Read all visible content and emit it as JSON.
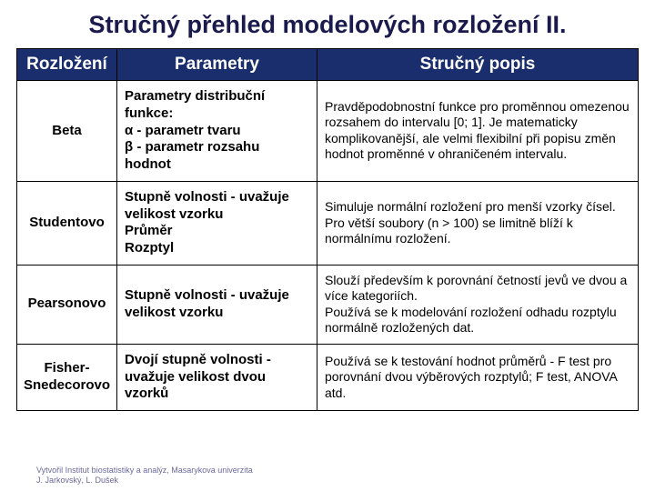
{
  "title": "Stručný přehled modelových rozložení II.",
  "headers": {
    "c1": "Rozložení",
    "c2": "Parametry",
    "c3": "Stručný popis"
  },
  "rows": [
    {
      "name": "Beta",
      "params": "Parametry distribuční funkce:\nα - parametr tvaru\nβ - parametr rozsahu hodnot",
      "desc": "Pravděpodobnostní funkce pro proměnnou omezenou rozsahem do intervalu [0; 1]. Je matematicky komplikovanější, ale velmi flexibilní při popisu změn hodnot proměnné v ohraničeném intervalu."
    },
    {
      "name": "Studentovo",
      "params": "Stupně volnosti - uvažuje velikost vzorku\nPrůměr\nRozptyl",
      "desc": "Simuluje normální rozložení pro menší vzorky čísel. Pro větší soubory (n > 100) se limitně blíží k normálnímu rozložení."
    },
    {
      "name": "Pearsonovo",
      "params": "Stupně volnosti - uvažuje velikost vzorku",
      "desc": "Slouží především k porovnání četností jevů ve dvou a více kategoriích.\nPoužívá se k modelování rozložení odhadu rozptylu normálně rozložených dat."
    },
    {
      "name": "Fisher-Snedecorovo",
      "params": "Dvojí stupně volnosti - uvažuje velikost dvou vzorků",
      "desc": "Používá se k testování hodnot průměrů - F test pro porovnání dvou výběrových rozptylů; F test, ANOVA atd."
    }
  ],
  "footer": {
    "line1": "Vytvořil Institut biostatistiky a analýz, Masarykova univerzita",
    "line2": "J. Jarkovský, L. Dušek"
  },
  "colors": {
    "header_bg": "#1a2e6e",
    "title_color": "#1a1a4d",
    "border": "#000000",
    "footer_color": "#6a6a9a"
  }
}
